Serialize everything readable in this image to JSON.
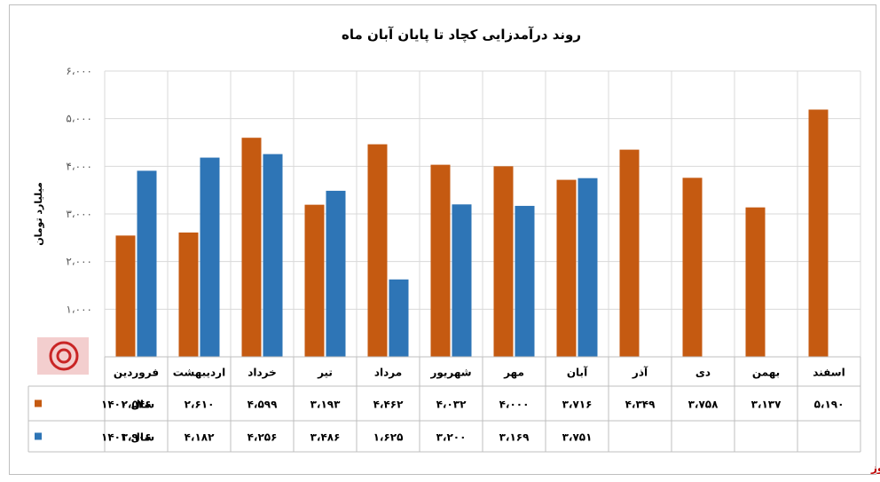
{
  "chart_data": {
    "type": "bar",
    "title": "روند درآمدزایی کچاد تا پایان آبان ماه",
    "ylabel": "میلیارد تومان",
    "ylim": [
      0,
      6000
    ],
    "yticks": [
      0,
      1000,
      2000,
      3000,
      4000,
      5000,
      6000
    ],
    "ytick_labels": [
      "۰",
      "۱،۰۰۰",
      "۲،۰۰۰",
      "۳،۰۰۰",
      "۴،۰۰۰",
      "۵،۰۰۰",
      "۶،۰۰۰"
    ],
    "grid": true,
    "categories": [
      "فروردین",
      "اردیبهشت",
      "خرداد",
      "تیر",
      "مرداد",
      "شهریور",
      "مهر",
      "آبان",
      "آذر",
      "دی",
      "بهمن",
      "اسفند"
    ],
    "series": [
      {
        "name": "سال ۱۴۰۰",
        "color": "#c55a11",
        "values": [
          2546,
          2610,
          4599,
          3193,
          4462,
          4032,
          4000,
          3716,
          4349,
          3758,
          3137,
          5190
        ],
        "labels": [
          "۲،۵۴۶",
          "۲،۶۱۰",
          "۴،۵۹۹",
          "۳،۱۹۳",
          "۴،۴۶۲",
          "۴،۰۳۲",
          "۴،۰۰۰",
          "۳،۷۱۶",
          "۴،۳۴۹",
          "۳،۷۵۸",
          "۳،۱۳۷",
          "۵،۱۹۰"
        ]
      },
      {
        "name": "سال ۱۴۰۱",
        "color": "#2e75b6",
        "values": [
          3906,
          4182,
          4256,
          3486,
          1625,
          3200,
          3169,
          3751,
          null,
          null,
          null,
          null
        ],
        "labels": [
          "۳،۹۰۶",
          "۴،۱۸۲",
          "۴،۲۵۶",
          "۳،۴۸۶",
          "۱،۶۲۵",
          "۳،۲۰۰",
          "۳،۱۶۹",
          "۳،۷۵۱",
          "",
          "",
          "",
          ""
        ]
      }
    ],
    "data_table": true,
    "source": "بورس نیوز"
  }
}
